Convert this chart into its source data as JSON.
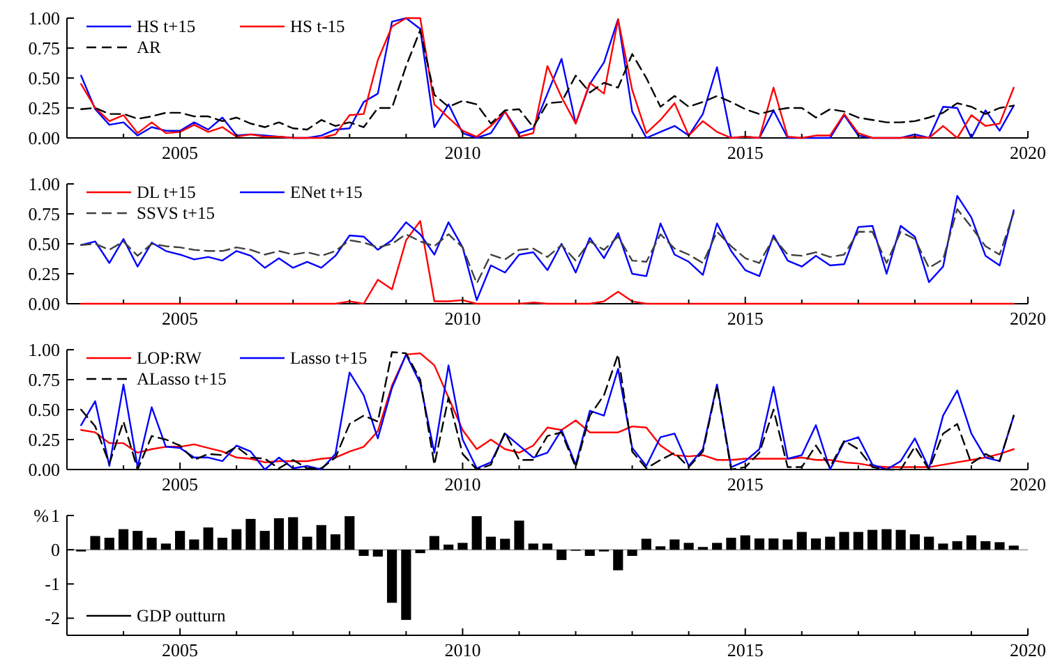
{
  "chart_data": [
    {
      "type": "line",
      "xlim": [
        2003,
        2020
      ],
      "xticks": [
        {
          "value": 2004,
          "label": null
        },
        2005,
        {
          "value": 2006,
          "label": null
        },
        {
          "value": 2007,
          "label": null
        },
        {
          "value": 2008,
          "label": null
        },
        {
          "value": 2009,
          "label": null
        },
        2010,
        {
          "value": 2011,
          "label": null
        },
        {
          "value": 2012,
          "label": null
        },
        {
          "value": 2013,
          "label": null
        },
        {
          "value": 2014,
          "label": null
        },
        2015,
        {
          "value": 2016,
          "label": null
        },
        {
          "value": 2017,
          "label": null
        },
        {
          "value": 2018,
          "label": null
        },
        {
          "value": 2019,
          "label": null
        },
        2020
      ],
      "ylim": [
        0,
        1
      ],
      "yticks": [
        {
          "value": 0,
          "label": "0.00"
        },
        {
          "value": 0.25,
          "label": "0.25"
        },
        {
          "value": 0.5,
          "label": "0.50"
        },
        {
          "value": 0.75,
          "label": "0.75"
        },
        {
          "value": 1,
          "label": "1.00"
        }
      ],
      "legend": "top left",
      "x": [
        2003.25,
        2003.5,
        2003.75,
        2004,
        2004.25,
        2004.5,
        2004.75,
        2005,
        2005.25,
        2005.5,
        2005.75,
        2006,
        2006.25,
        2006.5,
        2006.75,
        2007,
        2007.25,
        2007.5,
        2007.75,
        2008,
        2008.25,
        2008.5,
        2008.75,
        2009,
        2009.25,
        2009.5,
        2009.75,
        2010,
        2010.25,
        2010.5,
        2010.75,
        2011,
        2011.25,
        2011.5,
        2011.75,
        2012,
        2012.25,
        2012.5,
        2012.75,
        2013,
        2013.25,
        2013.5,
        2013.75,
        2014,
        2014.25,
        2014.5,
        2014.75,
        2015,
        2015.25,
        2015.5,
        2015.75,
        2016,
        2016.25,
        2016.5,
        2016.75,
        2017,
        2017.25,
        2017.5,
        2017.75,
        2018,
        2018.25,
        2018.5,
        2018.75,
        2019,
        2019.25,
        2019.5,
        2019.75
      ],
      "series": [
        {
          "name": "HS t+15",
          "color": "#0000ff",
          "values": [
            0.52,
            0.24,
            0.11,
            0.13,
            0.02,
            0.09,
            0.06,
            0.06,
            0.13,
            0.07,
            0.17,
            0.02,
            0.03,
            0.02,
            0.01,
            0,
            0,
            0.02,
            0.07,
            0.08,
            0.3,
            0.37,
            0.97,
            1,
            0.91,
            0.09,
            0.28,
            0.04,
            0,
            0.04,
            0.22,
            0.04,
            0.08,
            0.37,
            0.66,
            0.12,
            0.45,
            0.63,
            0.99,
            0.22,
            0,
            0.05,
            0.1,
            0.02,
            0.2,
            0.59,
            0,
            0.01,
            0,
            0.23,
            0,
            0,
            0,
            0,
            0.19,
            0.02,
            0,
            0,
            0,
            0.03,
            0,
            0.26,
            0.25,
            0,
            0.23,
            0.06,
            0.27
          ]
        },
        {
          "name": "HS t-15",
          "color": "#ff0000",
          "values": [
            0.45,
            0.25,
            0.14,
            0.19,
            0.04,
            0.13,
            0.04,
            0.05,
            0.11,
            0.05,
            0.09,
            0.01,
            0.03,
            0.01,
            0.01,
            0,
            0,
            0,
            0.03,
            0.19,
            0.2,
            0.65,
            0.93,
            1,
            1,
            0.28,
            0.17,
            0.06,
            0.01,
            0.1,
            0.22,
            0.01,
            0.04,
            0.6,
            0.34,
            0.12,
            0.46,
            0.37,
            0.99,
            0.4,
            0.04,
            0.15,
            0.29,
            0.02,
            0.14,
            0.05,
            0,
            0.01,
            0,
            0.42,
            0.01,
            0,
            0.02,
            0.02,
            0.2,
            0.04,
            0,
            0,
            0,
            0.01,
            0,
            0.1,
            0,
            0.19,
            0.1,
            0.12,
            0.42
          ]
        },
        {
          "name": "AR",
          "color": "#000000",
          "line_style": "dashed",
          "values": [
            0.24,
            0.25,
            0.2,
            0.2,
            0.16,
            0.18,
            0.21,
            0.21,
            0.18,
            0.18,
            0.14,
            0.17,
            0.12,
            0.09,
            0.13,
            0.08,
            0.07,
            0.15,
            0.1,
            0.13,
            0.09,
            0.25,
            0.25,
            0.6,
            0.9,
            0.36,
            0.26,
            0.31,
            0.28,
            0.12,
            0.23,
            0.24,
            0.09,
            0.29,
            0.3,
            0.52,
            0.38,
            0.46,
            0.42,
            0.7,
            0.5,
            0.26,
            0.35,
            0.26,
            0.3,
            0.35,
            0.3,
            0.24,
            0.2,
            0.23,
            0.25,
            0.25,
            0.17,
            0.24,
            0.22,
            0.17,
            0.15,
            0.13,
            0.13,
            0.14,
            0.17,
            0.21,
            0.29,
            0.26,
            0.2,
            0.25,
            0.27
          ]
        }
      ]
    },
    {
      "type": "line",
      "xlim": [
        2003,
        2020
      ],
      "xticks": [
        {
          "value": 2004,
          "label": null
        },
        2005,
        {
          "value": 2006,
          "label": null
        },
        {
          "value": 2007,
          "label": null
        },
        {
          "value": 2008,
          "label": null
        },
        {
          "value": 2009,
          "label": null
        },
        2010,
        {
          "value": 2011,
          "label": null
        },
        {
          "value": 2012,
          "label": null
        },
        {
          "value": 2013,
          "label": null
        },
        {
          "value": 2014,
          "label": null
        },
        2015,
        {
          "value": 2016,
          "label": null
        },
        {
          "value": 2017,
          "label": null
        },
        {
          "value": 2018,
          "label": null
        },
        {
          "value": 2019,
          "label": null
        },
        2020
      ],
      "ylim": [
        0,
        1
      ],
      "yticks": [
        {
          "value": 0,
          "label": "0.00"
        },
        {
          "value": 0.25,
          "label": "0.25"
        },
        {
          "value": 0.5,
          "label": "0.50"
        },
        {
          "value": 0.75,
          "label": "0.75"
        },
        {
          "value": 1,
          "label": "1.00"
        }
      ],
      "legend": "top left",
      "x": [
        2003.25,
        2003.5,
        2003.75,
        2004,
        2004.25,
        2004.5,
        2004.75,
        2005,
        2005.25,
        2005.5,
        2005.75,
        2006,
        2006.25,
        2006.5,
        2006.75,
        2007,
        2007.25,
        2007.5,
        2007.75,
        2008,
        2008.25,
        2008.5,
        2008.75,
        2009,
        2009.25,
        2009.5,
        2009.75,
        2010,
        2010.25,
        2010.5,
        2010.75,
        2011,
        2011.25,
        2011.5,
        2011.75,
        2012,
        2012.25,
        2012.5,
        2012.75,
        2013,
        2013.25,
        2013.5,
        2013.75,
        2014,
        2014.25,
        2014.5,
        2014.75,
        2015,
        2015.25,
        2015.5,
        2015.75,
        2016,
        2016.25,
        2016.5,
        2016.75,
        2017,
        2017.25,
        2017.5,
        2017.75,
        2018,
        2018.25,
        2018.5,
        2018.75,
        2019,
        2019.25,
        2019.5,
        2019.75
      ],
      "series": [
        {
          "name": "DL t+15",
          "color": "#ff0000",
          "values": [
            0,
            0,
            0,
            0,
            0,
            0,
            0,
            0,
            0,
            0,
            0,
            0,
            0,
            0,
            0,
            0,
            0,
            0,
            0,
            0.02,
            0,
            0.2,
            0.12,
            0.53,
            0.69,
            0.02,
            0.02,
            0.03,
            0,
            0,
            0,
            0,
            0.01,
            0,
            0,
            0,
            0,
            0.02,
            0.1,
            0.02,
            0,
            0,
            0,
            0,
            0,
            0,
            0,
            0,
            0,
            0,
            0,
            0,
            0,
            0,
            0,
            0,
            0,
            0,
            0,
            0,
            0,
            0,
            0,
            0,
            0,
            0,
            0
          ]
        },
        {
          "name": "ENet t+15",
          "color": "#0000ff",
          "values": [
            0.49,
            0.52,
            0.34,
            0.54,
            0.31,
            0.51,
            0.44,
            0.41,
            0.37,
            0.39,
            0.36,
            0.44,
            0.4,
            0.3,
            0.38,
            0.3,
            0.35,
            0.3,
            0.4,
            0.57,
            0.56,
            0.45,
            0.53,
            0.68,
            0.58,
            0.41,
            0.68,
            0.47,
            0.03,
            0.32,
            0.26,
            0.41,
            0.43,
            0.28,
            0.5,
            0.26,
            0.55,
            0.38,
            0.59,
            0.25,
            0.23,
            0.67,
            0.41,
            0.35,
            0.24,
            0.67,
            0.44,
            0.28,
            0.23,
            0.57,
            0.36,
            0.31,
            0.4,
            0.32,
            0.33,
            0.64,
            0.65,
            0.25,
            0.65,
            0.56,
            0.18,
            0.31,
            0.9,
            0.72,
            0.4,
            0.32,
            0.78
          ]
        },
        {
          "name": "SSVS t+15",
          "color": "#404040",
          "line_style": "dashed",
          "values": [
            0.49,
            0.5,
            0.45,
            0.52,
            0.4,
            0.5,
            0.48,
            0.47,
            0.45,
            0.44,
            0.44,
            0.47,
            0.45,
            0.41,
            0.44,
            0.41,
            0.43,
            0.4,
            0.44,
            0.53,
            0.51,
            0.47,
            0.5,
            0.58,
            0.52,
            0.48,
            0.58,
            0.47,
            0.17,
            0.41,
            0.37,
            0.45,
            0.46,
            0.39,
            0.49,
            0.36,
            0.52,
            0.45,
            0.56,
            0.36,
            0.35,
            0.58,
            0.46,
            0.41,
            0.34,
            0.6,
            0.48,
            0.38,
            0.34,
            0.55,
            0.41,
            0.4,
            0.43,
            0.39,
            0.41,
            0.6,
            0.6,
            0.34,
            0.6,
            0.54,
            0.3,
            0.37,
            0.79,
            0.64,
            0.48,
            0.41,
            0.76
          ]
        }
      ]
    },
    {
      "type": "line",
      "xlim": [
        2003,
        2020
      ],
      "xticks": [
        {
          "value": 2004,
          "label": null
        },
        2005,
        {
          "value": 2006,
          "label": null
        },
        {
          "value": 2007,
          "label": null
        },
        {
          "value": 2008,
          "label": null
        },
        {
          "value": 2009,
          "label": null
        },
        2010,
        {
          "value": 2011,
          "label": null
        },
        {
          "value": 2012,
          "label": null
        },
        {
          "value": 2013,
          "label": null
        },
        {
          "value": 2014,
          "label": null
        },
        2015,
        {
          "value": 2016,
          "label": null
        },
        {
          "value": 2017,
          "label": null
        },
        {
          "value": 2018,
          "label": null
        },
        {
          "value": 2019,
          "label": null
        },
        2020
      ],
      "ylim": [
        0,
        1
      ],
      "yticks": [
        {
          "value": 0,
          "label": "0.00"
        },
        {
          "value": 0.25,
          "label": "0.25"
        },
        {
          "value": 0.5,
          "label": "0.50"
        },
        {
          "value": 0.75,
          "label": "0.75"
        },
        {
          "value": 1,
          "label": "1.00"
        }
      ],
      "legend": "top left",
      "x": [
        2003.25,
        2003.5,
        2003.75,
        2004,
        2004.25,
        2004.5,
        2004.75,
        2005,
        2005.25,
        2005.5,
        2005.75,
        2006,
        2006.25,
        2006.5,
        2006.75,
        2007,
        2007.25,
        2007.5,
        2007.75,
        2008,
        2008.25,
        2008.5,
        2008.75,
        2009,
        2009.25,
        2009.5,
        2009.75,
        2010,
        2010.25,
        2010.5,
        2010.75,
        2011,
        2011.25,
        2011.5,
        2011.75,
        2012,
        2012.25,
        2012.5,
        2012.75,
        2013,
        2013.25,
        2013.5,
        2013.75,
        2014,
        2014.25,
        2014.5,
        2014.75,
        2015,
        2015.25,
        2015.5,
        2015.75,
        2016,
        2016.25,
        2016.5,
        2016.75,
        2017,
        2017.25,
        2017.5,
        2017.75,
        2018,
        2018.25,
        2018.5,
        2018.75,
        2019,
        2019.25,
        2019.5,
        2019.75
      ],
      "series": [
        {
          "name": "LOP:RW",
          "color": "#ff0000",
          "values": [
            0.33,
            0.31,
            0.22,
            0.22,
            0.14,
            0.17,
            0.19,
            0.19,
            0.21,
            0.18,
            0.15,
            0.1,
            0.09,
            0.06,
            0.07,
            0.07,
            0.07,
            0.09,
            0.1,
            0.15,
            0.19,
            0.32,
            0.7,
            0.96,
            0.97,
            0.87,
            0.6,
            0.33,
            0.17,
            0.25,
            0.17,
            0.14,
            0.2,
            0.35,
            0.33,
            0.41,
            0.31,
            0.31,
            0.31,
            0.36,
            0.35,
            0.2,
            0.12,
            0.11,
            0.12,
            0.08,
            0.08,
            0.09,
            0.09,
            0.09,
            0.09,
            0.1,
            0.08,
            0.08,
            0.06,
            0.05,
            0.03,
            0.02,
            0.02,
            0.02,
            0.02,
            0.04,
            0.06,
            0.08,
            0.1,
            0.13,
            0.17
          ]
        },
        {
          "name": "Lasso t+15",
          "color": "#0000ff",
          "values": [
            0.37,
            0.57,
            0.03,
            0.71,
            0.02,
            0.52,
            0.19,
            0.18,
            0.1,
            0.1,
            0.07,
            0.2,
            0.15,
            0,
            0.1,
            0.01,
            0.03,
            0,
            0.13,
            0.81,
            0.62,
            0.26,
            0.68,
            0.96,
            0.72,
            0.14,
            0.87,
            0.25,
            0.01,
            0.06,
            0.3,
            0.2,
            0.1,
            0.14,
            0.33,
            0.04,
            0.49,
            0.45,
            0.84,
            0.18,
            0.03,
            0.27,
            0.3,
            0.03,
            0.17,
            0.71,
            0.02,
            0.07,
            0.17,
            0.69,
            0.09,
            0.12,
            0.37,
            0,
            0.23,
            0.27,
            0.04,
            0,
            0.07,
            0.26,
            0.01,
            0.45,
            0.66,
            0.3,
            0.1,
            0.07,
            0.45
          ]
        },
        {
          "name": "ALasso t+15",
          "color": "#000000",
          "line_style": "dashed",
          "values": [
            0.5,
            0.36,
            0.05,
            0.4,
            0,
            0.28,
            0.25,
            0.2,
            0.08,
            0.13,
            0.12,
            0.19,
            0.1,
            0.09,
            0.01,
            0.08,
            0.01,
            0.01,
            0.1,
            0.38,
            0.45,
            0.4,
            0.98,
            0.97,
            0.75,
            0.04,
            0.6,
            0.13,
            0,
            0.04,
            0.31,
            0.08,
            0.08,
            0.28,
            0.31,
            0.02,
            0.45,
            0.62,
            0.96,
            0.15,
            0.01,
            0.08,
            0.14,
            0.02,
            0.15,
            0.7,
            0,
            0.02,
            0.14,
            0.5,
            0.02,
            0.02,
            0.2,
            0.02,
            0.24,
            0.17,
            0.02,
            0,
            0,
            0.19,
            0,
            0.3,
            0.38,
            0.05,
            0.13,
            0.07,
            0.45
          ]
        }
      ]
    },
    {
      "type": "bar",
      "ylabel": "%",
      "xlim": [
        2003,
        2020
      ],
      "xticks": [
        {
          "value": 2004,
          "label": null
        },
        2005,
        {
          "value": 2006,
          "label": null
        },
        {
          "value": 2007,
          "label": null
        },
        {
          "value": 2008,
          "label": null
        },
        {
          "value": 2009,
          "label": null
        },
        2010,
        {
          "value": 2011,
          "label": null
        },
        {
          "value": 2012,
          "label": null
        },
        {
          "value": 2013,
          "label": null
        },
        {
          "value": 2014,
          "label": null
        },
        2015,
        {
          "value": 2016,
          "label": null
        },
        {
          "value": 2017,
          "label": null
        },
        {
          "value": 2018,
          "label": null
        },
        {
          "value": 2019,
          "label": null
        },
        2020
      ],
      "ylim": [
        -2.5,
        1
      ],
      "yticks": [
        -2,
        -1,
        0,
        1
      ],
      "legend": "bottom left",
      "ref_lines": [
        {
          "axis": "y",
          "value": 0,
          "color": "#b0b0b0"
        }
      ],
      "x": [
        2003.25,
        2003.5,
        2003.75,
        2004,
        2004.25,
        2004.5,
        2004.75,
        2005,
        2005.25,
        2005.5,
        2005.75,
        2006,
        2006.25,
        2006.5,
        2006.75,
        2007,
        2007.25,
        2007.5,
        2007.75,
        2008,
        2008.25,
        2008.5,
        2008.75,
        2009,
        2009.25,
        2009.5,
        2009.75,
        2010,
        2010.25,
        2010.5,
        2010.75,
        2011,
        2011.25,
        2011.5,
        2011.75,
        2012,
        2012.25,
        2012.5,
        2012.75,
        2013,
        2013.25,
        2013.5,
        2013.75,
        2014,
        2014.25,
        2014.5,
        2014.75,
        2015,
        2015.25,
        2015.5,
        2015.75,
        2016,
        2016.25,
        2016.5,
        2016.75,
        2017,
        2017.25,
        2017.5,
        2017.75,
        2018,
        2018.25,
        2018.5,
        2018.75,
        2019,
        2019.25,
        2019.5,
        2019.75
      ],
      "series": [
        {
          "name": "GDP outturn",
          "color": "#000000",
          "values": [
            -0.05,
            0.4,
            0.35,
            0.6,
            0.55,
            0.35,
            0.18,
            0.55,
            0.3,
            0.65,
            0.35,
            0.6,
            0.9,
            0.55,
            0.92,
            0.95,
            0.38,
            0.72,
            0.45,
            0.98,
            -0.18,
            -0.2,
            -1.55,
            -2.05,
            -0.1,
            0.4,
            0.15,
            0.2,
            0.98,
            0.38,
            0.32,
            0.85,
            0.18,
            0.18,
            -0.3,
            -0.03,
            -0.18,
            -0.05,
            -0.6,
            -0.18,
            0.32,
            0.1,
            0.3,
            0.2,
            0.08,
            0.2,
            0.35,
            0.42,
            0.33,
            0.33,
            0.3,
            0.52,
            0.33,
            0.38,
            0.52,
            0.52,
            0.58,
            0.6,
            0.58,
            0.45,
            0.38,
            0.18,
            0.25,
            0.42,
            0.25,
            0.22,
            0.12
          ]
        }
      ]
    }
  ]
}
